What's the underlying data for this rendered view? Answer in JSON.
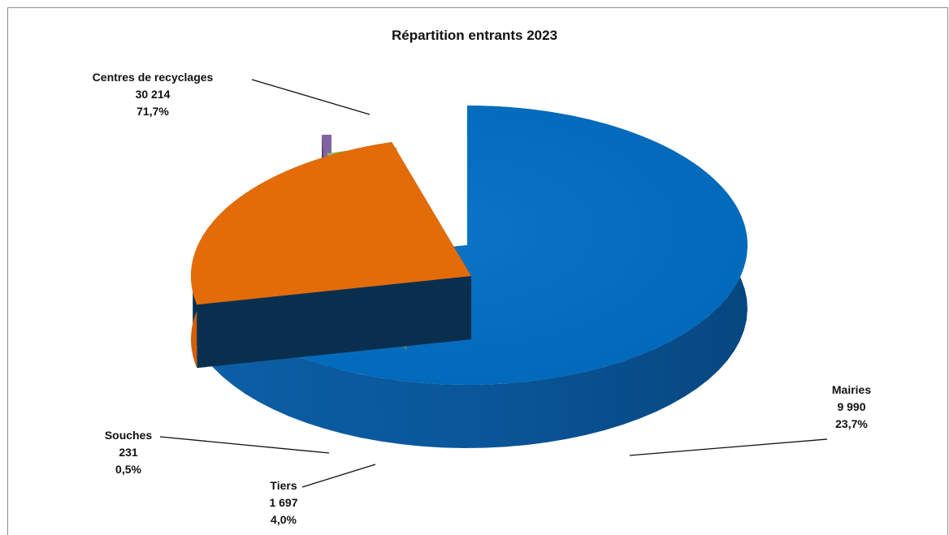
{
  "chart_data": {
    "type": "pie",
    "title": "Répartition entrants 2023",
    "categories": [
      "Centres de recyclages",
      "Mairies",
      "Tiers",
      "Souches"
    ],
    "values": [
      30214,
      9990,
      1697,
      231
    ],
    "value_labels": [
      "30 214",
      "9 990",
      "1 697",
      "231"
    ],
    "percent_labels": [
      "71,7%",
      "23,7%",
      "4,0%",
      "0,5%"
    ],
    "colors": [
      "#0070c0",
      "#e36c09",
      "#9bbb59",
      "#8064a2"
    ],
    "legend": "none",
    "style": "3d-exploded"
  }
}
